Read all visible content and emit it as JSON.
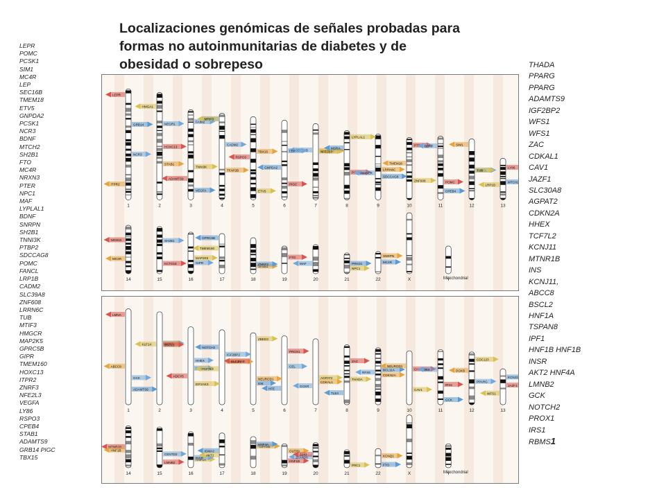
{
  "title_lines": [
    "Localizaciones genómicas de señales probadas para",
    "formas no autoinmunitarias de diabetes y de",
    "obesidad o sobrepeso"
  ],
  "obesity_genes": [
    "LEPR",
    "POMC",
    "PCSK1",
    "SIM1",
    "MC4R",
    "LEP",
    "SEC16B",
    "TMEM18",
    "ETV5",
    "GNPDA2",
    "PCSK1",
    "NCR3",
    "BDNF",
    "MTCH2",
    "SH2B1",
    "FTO",
    "MC4R",
    "NRXN3",
    "PTER",
    "NPC1",
    "MAF",
    "LYPLAL1",
    "BDNF",
    "SNRPN",
    "SH2B1",
    "TNNI3K",
    "PTBP2",
    "SDCCAG8",
    "POMC",
    "FANCL",
    "LRP1B",
    "CADM2",
    "SLC39A8",
    "ZNF608",
    "LRRN6C",
    "TUB",
    "MTIF3",
    "HMGCR",
    "MAP2K5",
    "GPRC5B",
    "GIPR",
    "TMEM160",
    "HOXC13",
    "ITPR2",
    "ZNRF3",
    "NFE2L3",
    "VEGFA",
    "LY86",
    "RSPO3",
    "CPEB4",
    "STAB1",
    "ADAMTS9",
    "GRB14 PIGC",
    "TBX15"
  ],
  "diabetes_genes": [
    "THADA",
    "PPARG",
    "PPARG",
    "ADAMTS9",
    "IGF2BP2",
    "WFS1",
    "WFS1",
    "ZAC",
    "CDKAL1",
    "CAV1",
    "JAZF1",
    "SLC30A8",
    "AGPAT2",
    "CDKN2A",
    "HHEX",
    "TCF7L2",
    "KCNJ11",
    "MTNR1B",
    "INS",
    "KCNJ11,",
    "ABCC8",
    "BSCL2",
    "HNF1A",
    "TSPAN8",
    "IPF1",
    "HNF1B HNF1B",
    "INSR",
    "AKT2 HNF4A",
    "LMNB2",
    "GCK",
    "NOTCH2",
    "PROX1",
    "IRS1"
  ],
  "diabetes_last": {
    "prefix": "RBMS",
    "suffix": "1"
  },
  "top_panel": {
    "row1_labels": [
      "1",
      "2",
      "3",
      "4",
      "5",
      "6",
      "7",
      "8",
      "9",
      "10",
      "11",
      "12",
      "13"
    ],
    "row2_labels": [
      "14",
      "15",
      "16",
      "17",
      "18",
      "19",
      "20",
      "21",
      "22",
      "X",
      "Y"
    ],
    "mito_label": "Mitochondrial",
    "marker_labels": [
      "LEPR",
      "NEGR1",
      "TNNI3K",
      "PTBP2",
      "TBX15",
      "PIGC",
      "SEC16B",
      "LYPLAL1",
      "SDCCAG8",
      "TMEM18",
      "POMC",
      "FANCL",
      "LRP1B",
      "GRB14",
      "STAB1",
      "ADAMTS9",
      "CADM2",
      "ETV5",
      "GNPDA2",
      "SLC39A8",
      "PCSK1",
      "HMGCR",
      "ZNF608",
      "CPEB4",
      "SIM1",
      "LY86",
      "NCR3",
      "HMGA1",
      "VEGFA",
      "TFAP2B",
      "RSPO3",
      "LEP",
      "NFE2L3",
      "MSRA",
      "LRRN6C",
      "PTER",
      "BDNF",
      "TUB",
      "MTCH2",
      "ITPR2",
      "HOXC13",
      "FAIM2",
      "MTIF3",
      "PRKD1",
      "SNRPN",
      "NRXN3",
      "SH2B1",
      "MAP2K5",
      "GPRC5B",
      "SH2B1",
      "FTO",
      "MAF",
      "NPC1",
      "MC4R",
      "MC4R",
      "KCTD15",
      "GIPR",
      "TMEM160",
      "ZNRF3"
    ]
  },
  "bottom_panel": {
    "row1_labels": [
      "1",
      "2",
      "3",
      "4",
      "5",
      "6",
      "7",
      "8",
      "9",
      "10",
      "11",
      "12",
      "13"
    ],
    "row2_labels": [
      "14",
      "15",
      "16",
      "17",
      "18",
      "19",
      "20",
      "21",
      "22",
      "X",
      "Y"
    ],
    "mito_label": "Mitochondrial",
    "marker_labels": [
      "LMNA",
      "ALMS1",
      "EIF2AK3",
      "NOTCH2",
      "NEUROD1",
      "PROX1",
      "GCKR",
      "THADA",
      "BCL11A",
      "NEUROD1",
      "IRS1",
      "PPARG",
      "WFS1",
      "ADAMTS9",
      "WFS1",
      "ADCY5",
      "IGF2BP2",
      "ZBED3",
      "HFE",
      "CDKAL1",
      "ZAC",
      "RFX6",
      "CAV1",
      "GCK",
      "DGKB",
      "JAZF1",
      "GCK",
      "KLF14",
      "FXN",
      "TP53INP1",
      "SLC30A8",
      "CEL",
      "AGPAT2",
      "TLE4",
      "CDKN2A",
      "CHCHD9",
      "INS",
      "CDC123",
      "KCNJ11",
      "ABCC8",
      "BSCL2",
      "HHEX",
      "TCF7L2",
      "IDE",
      "KCNQ1",
      "MTNR1B",
      "CENTD2",
      "HNF1A",
      "IGMA2",
      "TSPAN8",
      "HNF1B",
      "ZFAND6",
      "PRC1",
      "FTO",
      "HNF1B",
      "LMNB2",
      "INSR",
      "AKT2",
      "HNF4A",
      "OLEP9",
      "3243"
    ]
  }
}
